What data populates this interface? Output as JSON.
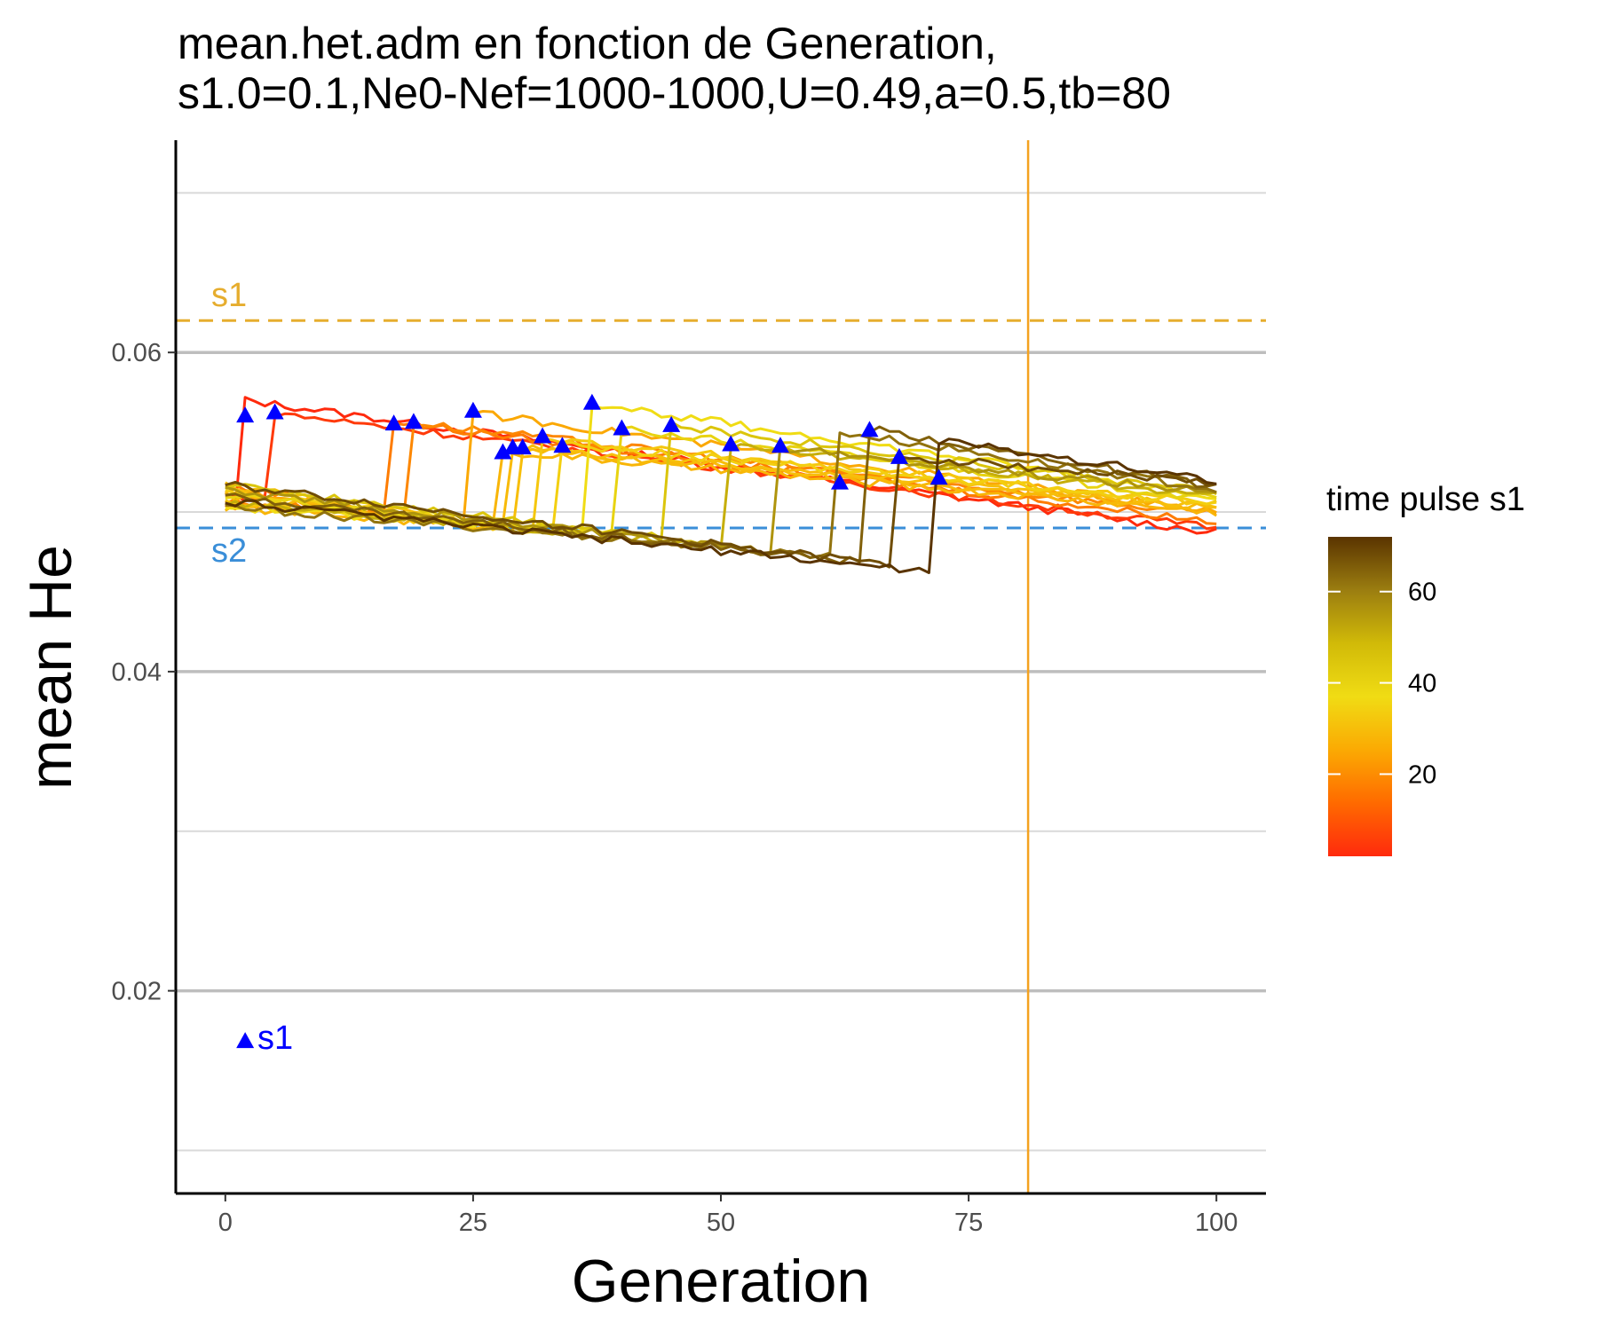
{
  "chart_data": {
    "type": "line",
    "title_line1": "mean.het.adm en fonction de Generation,",
    "title_line2": "s1.0=0.1,Ne0-Nef=1000-1000,U=0.49,a=0.5,tb=80",
    "xlabel": "Generation",
    "ylabel": "mean He",
    "xlim": [
      -5,
      105
    ],
    "ylim": [
      0.0073,
      0.0733
    ],
    "x_ticks": [
      0,
      25,
      50,
      75,
      100
    ],
    "x_tick_labels": [
      "0",
      "25",
      "50",
      "75",
      "100"
    ],
    "y_ticks": [
      0.02,
      0.04,
      0.06
    ],
    "y_tick_labels": [
      "0.02",
      "0.04",
      "0.06"
    ],
    "y_minor_gridlines": [
      0.01,
      0.03,
      0.05,
      0.07
    ],
    "grid": true,
    "legend": {
      "title": "time pulse s1",
      "position": "right",
      "range": [
        2,
        72
      ],
      "ticks": [
        20,
        40,
        60
      ],
      "tick_labels": [
        "20",
        "40",
        "60"
      ],
      "colors": [
        "#ff2a0d",
        "#ff6a00",
        "#fbaa03",
        "#f0dc14",
        "#d1ba08",
        "#9b7d10",
        "#5a3400"
      ]
    },
    "reference_lines": {
      "s1": {
        "y": 0.062,
        "label": "s1",
        "color": "#e6ad2e",
        "style": "dashed"
      },
      "s2": {
        "y": 0.049,
        "label": "s2",
        "color": "#3a8ed8",
        "style": "dashed"
      },
      "vertical": {
        "x": 81,
        "color": "#f4a21f"
      }
    },
    "series": [
      {
        "pulse": 2,
        "pre_end": 0.05,
        "peak": 0.057,
        "end": 0.0487
      },
      {
        "pulse": 5,
        "pre_end": 0.0508,
        "peak": 0.0562,
        "end": 0.049
      },
      {
        "pulse": 17,
        "pre_end": 0.05,
        "peak": 0.0556,
        "end": 0.0494
      },
      {
        "pulse": 19,
        "pre_end": 0.0498,
        "peak": 0.0556,
        "end": 0.0498
      },
      {
        "pulse": 25,
        "pre_end": 0.0492,
        "peak": 0.0562,
        "end": 0.05
      },
      {
        "pulse": 28,
        "pre_end": 0.049,
        "peak": 0.0538,
        "end": 0.05
      },
      {
        "pulse": 29,
        "pre_end": 0.049,
        "peak": 0.054,
        "end": 0.0502
      },
      {
        "pulse": 30,
        "pre_end": 0.0489,
        "peak": 0.054,
        "end": 0.0504
      },
      {
        "pulse": 32,
        "pre_end": 0.0488,
        "peak": 0.0546,
        "end": 0.0505
      },
      {
        "pulse": 34,
        "pre_end": 0.0487,
        "peak": 0.0542,
        "end": 0.0506
      },
      {
        "pulse": 37,
        "pre_end": 0.0488,
        "peak": 0.0568,
        "end": 0.051
      },
      {
        "pulse": 40,
        "pre_end": 0.0486,
        "peak": 0.0552,
        "end": 0.0508
      },
      {
        "pulse": 45,
        "pre_end": 0.0484,
        "peak": 0.0554,
        "end": 0.0512
      },
      {
        "pulse": 51,
        "pre_end": 0.0478,
        "peak": 0.0542,
        "end": 0.051
      },
      {
        "pulse": 56,
        "pre_end": 0.0474,
        "peak": 0.054,
        "end": 0.0512
      },
      {
        "pulse": 62,
        "pre_end": 0.0472,
        "peak": 0.055,
        "end": 0.0514
      },
      {
        "pulse": 65,
        "pre_end": 0.0468,
        "peak": 0.0552,
        "end": 0.0516
      },
      {
        "pulse": 68,
        "pre_end": 0.0466,
        "peak": 0.0535,
        "end": 0.0518
      },
      {
        "pulse": 72,
        "pre_end": 0.0462,
        "peak": 0.0545,
        "end": 0.052
      }
    ],
    "markers": [
      {
        "x": 2,
        "y": 0.056
      },
      {
        "x": 5,
        "y": 0.0562
      },
      {
        "x": 17,
        "y": 0.0555
      },
      {
        "x": 19,
        "y": 0.0556
      },
      {
        "x": 25,
        "y": 0.0563
      },
      {
        "x": 28,
        "y": 0.0537
      },
      {
        "x": 29,
        "y": 0.054
      },
      {
        "x": 30,
        "y": 0.054
      },
      {
        "x": 32,
        "y": 0.0547
      },
      {
        "x": 34,
        "y": 0.0541
      },
      {
        "x": 37,
        "y": 0.0568
      },
      {
        "x": 40,
        "y": 0.0552
      },
      {
        "x": 45,
        "y": 0.0554
      },
      {
        "x": 51,
        "y": 0.0542
      },
      {
        "x": 56,
        "y": 0.0541
      },
      {
        "x": 62,
        "y": 0.0518
      },
      {
        "x": 65,
        "y": 0.0551
      },
      {
        "x": 68,
        "y": 0.0534
      },
      {
        "x": 72,
        "y": 0.0521
      }
    ],
    "marker_legend": {
      "x": 2,
      "y": 0.0168,
      "label": "s1",
      "color": "#0000ff"
    }
  }
}
